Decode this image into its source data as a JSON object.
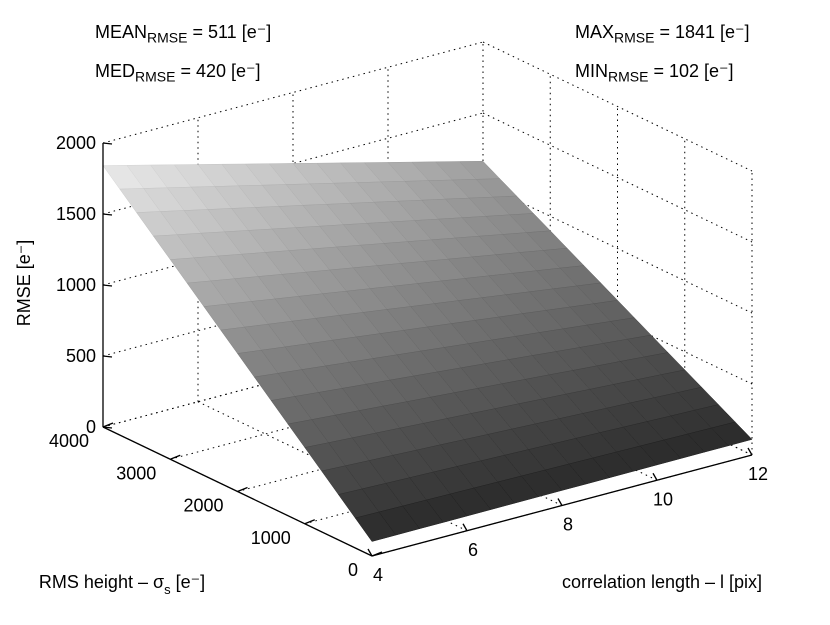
{
  "stats": {
    "mean": {
      "prefix": "MEAN",
      "sub": "RMSE",
      "value": "= 511 [e⁻]"
    },
    "med": {
      "prefix": "MED",
      "sub": "RMSE",
      "value": "= 420 [e⁻]"
    },
    "max": {
      "prefix": "MAX",
      "sub": "RMSE",
      "value": "= 1841 [e⁻]"
    },
    "min": {
      "prefix": "MIN",
      "sub": "RMSE",
      "value": "= 102 [e⁻]"
    }
  },
  "chart_data": {
    "type": "surface",
    "title": "",
    "zlabel": "RMSE [e⁻]",
    "xlabel": "correlation length – l [pix]",
    "ylabel_prefix": "RMS height – σ",
    "ylabel_sub": "s",
    "ylabel_suffix": " [e⁻]",
    "x_range": [
      4,
      12
    ],
    "y_range": [
      0,
      4000
    ],
    "z_range": [
      0,
      2000
    ],
    "x_ticks": [
      4,
      6,
      8,
      10,
      12
    ],
    "y_ticks": [
      0,
      1000,
      2000,
      3000,
      4000
    ],
    "z_ticks": [
      0,
      500,
      1000,
      1500,
      2000
    ],
    "grid": true,
    "colormap": "gray",
    "corner_values": {
      "x4_y0": 102,
      "x12_y0": 110,
      "x4_y4000": 1841,
      "x12_y4000": 1160
    },
    "summary": {
      "mean": 511,
      "median": 420,
      "max": 1841,
      "min": 102
    }
  }
}
